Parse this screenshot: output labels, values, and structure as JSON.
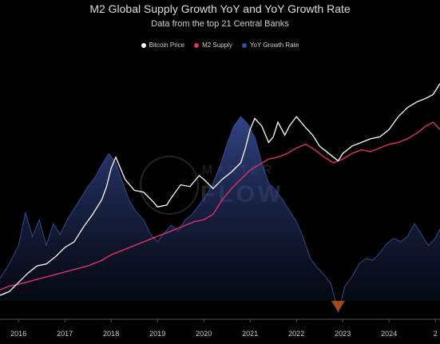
{
  "chart_data": {
    "type": "line",
    "title": "M2 Global Supply Growth YoY and YoY Growth Rate",
    "subtitle": "Data from the top 21 Central Banks",
    "x_ticks": [
      "2016",
      "2017",
      "2018",
      "2019",
      "2020",
      "2021",
      "2022",
      "2023",
      "2024",
      "2"
    ],
    "x_range": [
      2015.6,
      2025.1
    ],
    "legend_position": "top-center",
    "colors": {
      "bitcoin": "#ffffff",
      "m2": "#e0306a",
      "yoy_fill": "#1e2a5a",
      "yoy_line": "#3a4f9a",
      "yoy_negative": "#c4551c",
      "axis": "#555555"
    },
    "series": [
      {
        "name": "Bitcoin Price",
        "x": [
          2015.6,
          2015.8,
          2016.0,
          2016.2,
          2016.4,
          2016.6,
          2016.8,
          2017.0,
          2017.2,
          2017.4,
          2017.6,
          2017.8,
          2017.9,
          2018.0,
          2018.1,
          2018.3,
          2018.5,
          2018.7,
          2018.9,
          2019.0,
          2019.2,
          2019.3,
          2019.5,
          2019.7,
          2019.9,
          2020.0,
          2020.2,
          2020.4,
          2020.6,
          2020.8,
          2020.9,
          2021.0,
          2021.1,
          2021.25,
          2021.4,
          2021.5,
          2021.6,
          2021.75,
          2021.85,
          2022.0,
          2022.2,
          2022.35,
          2022.5,
          2022.7,
          2022.9,
          2023.0,
          2023.2,
          2023.4,
          2023.6,
          2023.8,
          2024.0,
          2024.2,
          2024.4,
          2024.6,
          2024.8,
          2024.95,
          2025.1
        ],
        "y": [
          0.03,
          0.05,
          0.1,
          0.15,
          0.19,
          0.2,
          0.24,
          0.29,
          0.32,
          0.4,
          0.47,
          0.55,
          0.62,
          0.72,
          0.78,
          0.66,
          0.6,
          0.59,
          0.54,
          0.51,
          0.52,
          0.56,
          0.63,
          0.62,
          0.68,
          0.66,
          0.61,
          0.66,
          0.7,
          0.75,
          0.83,
          0.93,
          0.99,
          0.95,
          0.86,
          0.89,
          0.97,
          0.9,
          0.95,
          1.0,
          0.94,
          0.9,
          0.84,
          0.8,
          0.76,
          0.8,
          0.84,
          0.86,
          0.88,
          0.89,
          0.93,
          1.0,
          1.05,
          1.08,
          1.1,
          1.12,
          1.18
        ]
      },
      {
        "name": "M2 Supply",
        "x": [
          2015.6,
          2015.8,
          2016.0,
          2016.3,
          2016.6,
          2016.9,
          2017.2,
          2017.5,
          2017.8,
          2018.0,
          2018.3,
          2018.6,
          2018.9,
          2019.2,
          2019.5,
          2019.8,
          2020.0,
          2020.2,
          2020.4,
          2020.6,
          2020.8,
          2021.0,
          2021.2,
          2021.4,
          2021.6,
          2021.8,
          2022.0,
          2022.2,
          2022.4,
          2022.6,
          2022.8,
          2023.0,
          2023.2,
          2023.4,
          2023.6,
          2023.8,
          2024.0,
          2024.2,
          2024.4,
          2024.6,
          2024.8,
          2024.95,
          2025.1
        ],
        "y": [
          0.06,
          0.08,
          0.09,
          0.11,
          0.13,
          0.15,
          0.17,
          0.19,
          0.22,
          0.25,
          0.28,
          0.31,
          0.34,
          0.37,
          0.4,
          0.43,
          0.44,
          0.47,
          0.55,
          0.61,
          0.66,
          0.71,
          0.74,
          0.77,
          0.78,
          0.8,
          0.83,
          0.85,
          0.82,
          0.78,
          0.75,
          0.77,
          0.8,
          0.82,
          0.81,
          0.83,
          0.85,
          0.86,
          0.88,
          0.91,
          0.95,
          0.97,
          0.93
        ]
      },
      {
        "name": "YoY Growth Rate",
        "x": [
          2015.6,
          2015.8,
          2016.0,
          2016.15,
          2016.3,
          2016.45,
          2016.6,
          2016.75,
          2016.9,
          2017.05,
          2017.2,
          2017.35,
          2017.5,
          2017.65,
          2017.8,
          2017.95,
          2018.1,
          2018.25,
          2018.4,
          2018.55,
          2018.7,
          2018.85,
          2019.0,
          2019.15,
          2019.3,
          2019.45,
          2019.6,
          2019.75,
          2019.9,
          2020.05,
          2020.2,
          2020.35,
          2020.5,
          2020.65,
          2020.8,
          2020.95,
          2021.1,
          2021.25,
          2021.4,
          2021.55,
          2021.7,
          2021.85,
          2022.0,
          2022.15,
          2022.3,
          2022.45,
          2022.6,
          2022.75,
          2022.9,
          2023.05,
          2023.2,
          2023.35,
          2023.5,
          2023.65,
          2023.8,
          2023.95,
          2024.1,
          2024.25,
          2024.4,
          2024.55,
          2024.7,
          2024.85,
          2025.0,
          2025.1
        ],
        "y": [
          0.12,
          0.2,
          0.3,
          0.48,
          0.35,
          0.44,
          0.3,
          0.42,
          0.36,
          0.44,
          0.5,
          0.56,
          0.62,
          0.67,
          0.74,
          0.8,
          0.75,
          0.64,
          0.54,
          0.48,
          0.44,
          0.36,
          0.32,
          0.37,
          0.41,
          0.38,
          0.44,
          0.47,
          0.52,
          0.57,
          0.64,
          0.73,
          0.85,
          0.95,
          1.0,
          0.96,
          0.89,
          0.75,
          0.64,
          0.6,
          0.55,
          0.49,
          0.43,
          0.34,
          0.23,
          0.18,
          0.14,
          0.09,
          -0.06,
          0.08,
          0.13,
          0.2,
          0.23,
          0.22,
          0.26,
          0.31,
          0.34,
          0.32,
          0.35,
          0.42,
          0.36,
          0.3,
          0.34,
          0.39
        ]
      }
    ]
  },
  "legend": [
    "Bitcoin Price",
    "M2 Supply",
    "YoY Growth Rate"
  ],
  "watermark": {
    "top": "MARTER",
    "bottom": "FLOW"
  }
}
